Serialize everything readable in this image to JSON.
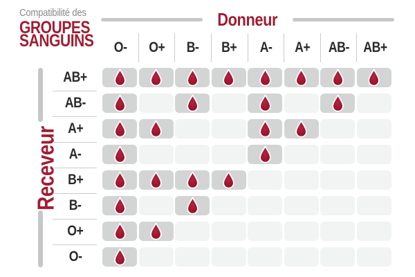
{
  "title": {
    "subtitle": "Compatibilité des",
    "line1": "GROUPES",
    "line2": "SANGUINS"
  },
  "axes": {
    "donor_label": "Donneur",
    "receiver_label": "Receveur"
  },
  "chart_data": {
    "type": "heatmap",
    "title": "Compatibilité des groupes sanguins",
    "x_axis_label": "Donneur",
    "y_axis_label": "Receveur",
    "donors": [
      "O-",
      "O+",
      "B-",
      "B+",
      "A-",
      "A+",
      "AB-",
      "AB+"
    ],
    "receivers": [
      "AB+",
      "AB-",
      "A+",
      "A-",
      "B+",
      "B-",
      "O+",
      "O-"
    ],
    "compatibility_matrix": [
      [
        1,
        1,
        1,
        1,
        1,
        1,
        1,
        1
      ],
      [
        1,
        0,
        1,
        0,
        1,
        0,
        1,
        0
      ],
      [
        1,
        1,
        0,
        0,
        1,
        1,
        0,
        0
      ],
      [
        1,
        0,
        0,
        0,
        1,
        0,
        0,
        0
      ],
      [
        1,
        1,
        1,
        1,
        0,
        0,
        0,
        0
      ],
      [
        1,
        0,
        1,
        0,
        0,
        0,
        0,
        0
      ],
      [
        1,
        1,
        0,
        0,
        0,
        0,
        0,
        0
      ],
      [
        1,
        0,
        0,
        0,
        0,
        0,
        0,
        0
      ]
    ],
    "cell_marker": "blood-drop",
    "legend_position": "none",
    "grid": "rounded-cells"
  },
  "icons": {
    "compatible_cell": "blood-drop-icon"
  },
  "colors": {
    "brand_red": "#A11D33",
    "drop_highlight": "#B32340",
    "drop_main": "#A1162F",
    "drop_edge": "#8C0F26",
    "drop_stroke": "#FFFFFF",
    "cell_compatible": "#D3D5D5",
    "cell_incompatible": "#F2F3F3",
    "axis_line_gray": "#C6C8C8",
    "separator_gray": "#CBCBCB",
    "text_dark": "#2B2B2B",
    "text_gray": "#8A8A8A",
    "background": "#FFFFFF"
  }
}
